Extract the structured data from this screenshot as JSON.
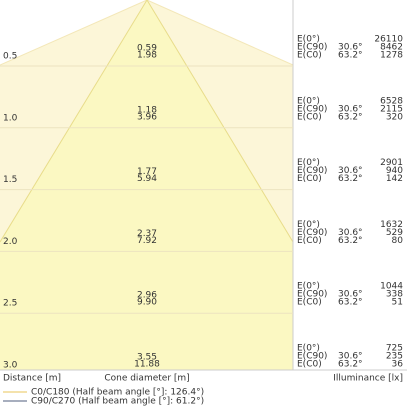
{
  "labels": {
    "e0": "E(0°)",
    "ec90": "E(C90)",
    "ec0": "E(C0)",
    "angle_c90": "30.6°",
    "angle_c0": "63.2°"
  },
  "rows": [
    {
      "distance": "0.5",
      "diameter_c90": "0.59",
      "diameter_c0": "1.98",
      "e0": "26110",
      "ec90": "8462",
      "ec0": "1278"
    },
    {
      "distance": "1.0",
      "diameter_c90": "1.18",
      "diameter_c0": "3.96",
      "e0": "6528",
      "ec90": "2115",
      "ec0": "320"
    },
    {
      "distance": "1.5",
      "diameter_c90": "1.77",
      "diameter_c0": "5.94",
      "e0": "2901",
      "ec90": "940",
      "ec0": "142"
    },
    {
      "distance": "2.0",
      "diameter_c90": "2.37",
      "diameter_c0": "7.92",
      "e0": "1632",
      "ec90": "529",
      "ec0": "80"
    },
    {
      "distance": "2.5",
      "diameter_c90": "2.96",
      "diameter_c0": "9.90",
      "e0": "1044",
      "ec90": "338",
      "ec0": "51"
    },
    {
      "distance": "3.0",
      "diameter_c90": "3.55",
      "diameter_c0": "11.88",
      "e0": "725",
      "ec90": "235",
      "ec0": "36"
    }
  ],
  "footer": {
    "distance": "Distance [m]",
    "diameter": "Cone diameter [m]",
    "illuminance": "Illuminance [lx]"
  },
  "legend": {
    "c0": "C0/C180 (Half beam angle [°]: 126.4°)",
    "c90": "C90/C270 (Half beam angle [°]: 61.2°)"
  }
}
